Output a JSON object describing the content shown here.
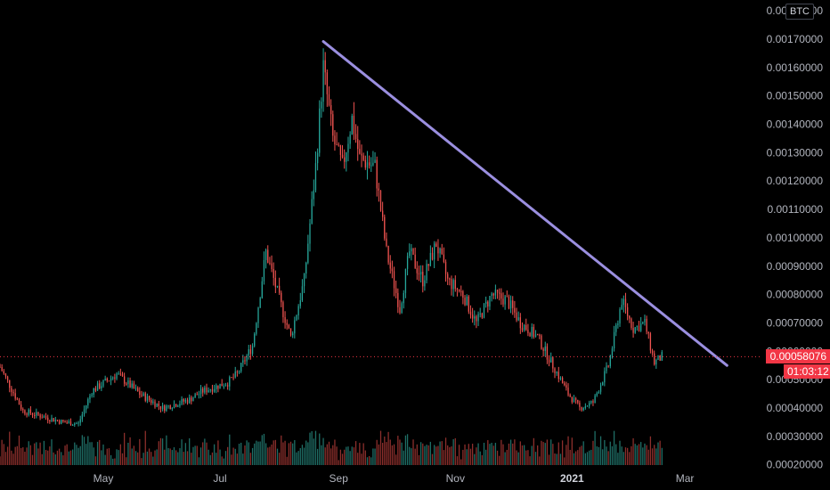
{
  "chart_data": {
    "type": "candlestick",
    "unit": "BTC",
    "y_ticks": [
      "0.00020000",
      "0.00030000",
      "0.00040000",
      "0.00050000",
      "0.00060000",
      "0.00070000",
      "0.00080000",
      "0.00090000",
      "0.00100000",
      "0.00110000",
      "0.00120000",
      "0.00130000",
      "0.00140000",
      "0.00150000",
      "0.00160000",
      "0.00170000",
      "0.00180000"
    ],
    "ylim": [
      0.000199,
      0.00181
    ],
    "x_ticks": [
      {
        "label": "May",
        "date": "2020-05-01",
        "bold": false
      },
      {
        "label": "Jul",
        "date": "2020-07-01",
        "bold": false
      },
      {
        "label": "Sep",
        "date": "2020-09-01",
        "bold": false
      },
      {
        "label": "Nov",
        "date": "2020-11-01",
        "bold": false
      },
      {
        "label": "2021",
        "date": "2021-01-01",
        "bold": true
      },
      {
        "label": "Mar",
        "date": "2021-03-01",
        "bold": false
      }
    ],
    "xlim": [
      "2020-03-08",
      "2021-04-10"
    ],
    "price_path": [
      [
        "2020-03-08",
        0.000545
      ],
      [
        "2020-03-20",
        0.00039
      ],
      [
        "2020-04-10",
        0.00035
      ],
      [
        "2020-04-18",
        0.000345
      ],
      [
        "2020-04-25",
        0.00046
      ],
      [
        "2020-05-08",
        0.00052
      ],
      [
        "2020-05-20",
        0.00045
      ],
      [
        "2020-06-01",
        0.0004
      ],
      [
        "2020-06-15",
        0.00043
      ],
      [
        "2020-06-22",
        0.00046
      ],
      [
        "2020-07-05",
        0.00049
      ],
      [
        "2020-07-10",
        0.00052
      ],
      [
        "2020-07-18",
        0.00062
      ],
      [
        "2020-07-25",
        0.00095
      ],
      [
        "2020-08-02",
        0.00076
      ],
      [
        "2020-08-07",
        0.00065
      ],
      [
        "2020-08-14",
        0.00085
      ],
      [
        "2020-08-20",
        0.00125
      ],
      [
        "2020-08-24",
        0.0016
      ],
      [
        "2020-08-29",
        0.00135
      ],
      [
        "2020-09-03",
        0.00125
      ],
      [
        "2020-09-08",
        0.00142
      ],
      [
        "2020-09-12",
        0.00128
      ],
      [
        "2020-09-20",
        0.00125
      ],
      [
        "2020-09-26",
        0.00095
      ],
      [
        "2020-10-03",
        0.00075
      ],
      [
        "2020-10-08",
        0.00095
      ],
      [
        "2020-10-15",
        0.00085
      ],
      [
        "2020-10-22",
        0.00098
      ],
      [
        "2020-10-28",
        0.00085
      ],
      [
        "2020-11-05",
        0.0008
      ],
      [
        "2020-11-12",
        0.0007
      ],
      [
        "2020-11-20",
        0.0008
      ],
      [
        "2020-11-28",
        0.00078
      ],
      [
        "2020-12-05",
        0.0007
      ],
      [
        "2020-12-14",
        0.00065
      ],
      [
        "2020-12-22",
        0.00055
      ],
      [
        "2020-12-30",
        0.00045
      ],
      [
        "2021-01-05",
        0.0004
      ],
      [
        "2021-01-12",
        0.00042
      ],
      [
        "2021-01-20",
        0.00055
      ],
      [
        "2021-01-27",
        0.00078
      ],
      [
        "2021-02-02",
        0.00068
      ],
      [
        "2021-02-08",
        0.0007
      ],
      [
        "2021-02-13",
        0.00056
      ],
      [
        "2021-02-17",
        0.000581
      ]
    ],
    "volume_band": {
      "bottom": 0.000199,
      "top": 0.00033
    },
    "trendline": {
      "start": [
        "2020-08-24",
        0.001692
      ],
      "end": [
        "2021-03-23",
        0.00055
      ],
      "color": "#9b8fe0"
    },
    "current_price": {
      "value": 0.00058076,
      "label": "0.00058076",
      "countdown": "01:03:12",
      "color": "#f23645"
    },
    "colors": {
      "up": "#26a69a",
      "down": "#ef5350",
      "vol_up": "#1f6e66",
      "vol_down": "#8c2f2c",
      "background": "#000000",
      "text": "#b2b5be"
    }
  }
}
